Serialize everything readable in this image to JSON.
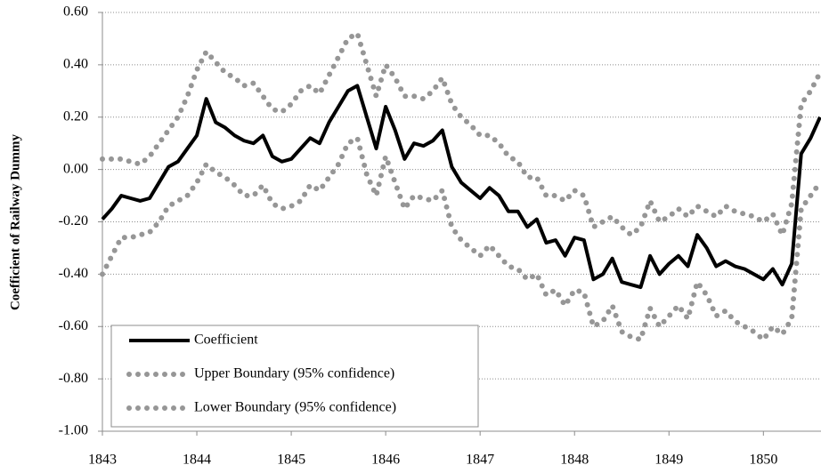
{
  "chart_data": {
    "type": "line",
    "y_label": "Coefficient of Railway Dummy",
    "xlim": [
      1843,
      1850.61
    ],
    "xticks": [
      1843,
      1844,
      1845,
      1846,
      1847,
      1848,
      1849,
      1850
    ],
    "ylim": [
      -1.0,
      0.6
    ],
    "yticks": [
      {
        "value": 0.6,
        "label": "0.60"
      },
      {
        "value": 0.4,
        "label": "0.40"
      },
      {
        "value": 0.2,
        "label": "0.20"
      },
      {
        "value": 0,
        "label": "0.00"
      },
      {
        "value": -0.2,
        "label": "-0.20"
      },
      {
        "value": -0.4,
        "label": "-0.40"
      },
      {
        "value": -0.6,
        "label": "-0.60"
      },
      {
        "value": -0.8,
        "label": "-0.80"
      },
      {
        "value": -1.0,
        "label": "-1.00"
      }
    ],
    "grid": true,
    "legend": "lower left",
    "x": [
      1843.0,
      1843.1,
      1843.2,
      1843.3,
      1843.4,
      1843.5,
      1843.6,
      1843.7,
      1843.8,
      1843.9,
      1844.0,
      1844.1,
      1844.2,
      1844.3,
      1844.4,
      1844.5,
      1844.6,
      1844.7,
      1844.8,
      1844.9,
      1845.0,
      1845.1,
      1845.2,
      1845.3,
      1845.4,
      1845.5,
      1845.6,
      1845.7,
      1845.8,
      1845.9,
      1846.0,
      1846.1,
      1846.2,
      1846.3,
      1846.4,
      1846.5,
      1846.6,
      1846.7,
      1846.8,
      1846.9,
      1847.0,
      1847.1,
      1847.2,
      1847.3,
      1847.4,
      1847.5,
      1847.6,
      1847.7,
      1847.8,
      1847.9,
      1848.0,
      1848.1,
      1848.2,
      1848.3,
      1848.4,
      1848.5,
      1848.6,
      1848.7,
      1848.8,
      1848.9,
      1849.0,
      1849.1,
      1849.2,
      1849.3,
      1849.4,
      1849.5,
      1849.6,
      1849.7,
      1849.8,
      1849.9,
      1850.0,
      1850.1,
      1850.2,
      1850.3,
      1850.4,
      1850.5,
      1850.6
    ],
    "series": [
      {
        "name": "Coefficient",
        "color": "#000000",
        "line_style": "solid",
        "values": [
          -0.19,
          -0.15,
          -0.1,
          -0.11,
          -0.12,
          -0.11,
          -0.05,
          0.01,
          0.03,
          0.08,
          0.13,
          0.27,
          0.18,
          0.16,
          0.13,
          0.11,
          0.1,
          0.13,
          0.05,
          0.03,
          0.04,
          0.08,
          0.12,
          0.1,
          0.18,
          0.24,
          0.3,
          0.32,
          0.2,
          0.08,
          0.24,
          0.15,
          0.04,
          0.1,
          0.09,
          0.11,
          0.15,
          0.01,
          -0.05,
          -0.08,
          -0.11,
          -0.07,
          -0.1,
          -0.16,
          -0.16,
          -0.22,
          -0.19,
          -0.28,
          -0.27,
          -0.33,
          -0.26,
          -0.27,
          -0.42,
          -0.4,
          -0.34,
          -0.43,
          -0.44,
          -0.45,
          -0.33,
          -0.4,
          -0.36,
          -0.33,
          -0.37,
          -0.25,
          -0.3,
          -0.37,
          -0.35,
          -0.37,
          -0.38,
          -0.4,
          -0.42,
          -0.38,
          -0.44,
          -0.36,
          0.06,
          0.12,
          0.2
        ]
      },
      {
        "name": "Upper Boundary (95% confidence)",
        "color": "#969696",
        "line_style": "dotted",
        "values": [
          0.04,
          0.04,
          0.04,
          0.03,
          0.02,
          0.05,
          0.1,
          0.15,
          0.2,
          0.28,
          0.38,
          0.45,
          0.41,
          0.37,
          0.35,
          0.32,
          0.33,
          0.28,
          0.23,
          0.22,
          0.25,
          0.3,
          0.32,
          0.29,
          0.36,
          0.43,
          0.5,
          0.52,
          0.4,
          0.28,
          0.4,
          0.35,
          0.28,
          0.28,
          0.27,
          0.3,
          0.35,
          0.25,
          0.2,
          0.17,
          0.13,
          0.13,
          0.1,
          0.05,
          0.03,
          -0.03,
          -0.03,
          -0.1,
          -0.1,
          -0.12,
          -0.08,
          -0.1,
          -0.22,
          -0.2,
          -0.18,
          -0.22,
          -0.25,
          -0.22,
          -0.12,
          -0.2,
          -0.18,
          -0.15,
          -0.18,
          -0.14,
          -0.16,
          -0.18,
          -0.14,
          -0.16,
          -0.17,
          -0.18,
          -0.2,
          -0.17,
          -0.25,
          -0.13,
          0.25,
          0.3,
          0.37
        ]
      },
      {
        "name": "Lower Boundary (95% confidence)",
        "color": "#969696",
        "line_style": "dotted",
        "values": [
          -0.4,
          -0.33,
          -0.26,
          -0.26,
          -0.25,
          -0.24,
          -0.2,
          -0.14,
          -0.12,
          -0.1,
          -0.05,
          0.02,
          -0.01,
          -0.03,
          -0.06,
          -0.1,
          -0.1,
          -0.06,
          -0.13,
          -0.15,
          -0.14,
          -0.12,
          -0.06,
          -0.08,
          -0.03,
          0.02,
          0.1,
          0.12,
          -0.02,
          -0.1,
          0.05,
          -0.05,
          -0.15,
          -0.1,
          -0.11,
          -0.12,
          -0.08,
          -0.22,
          -0.27,
          -0.3,
          -0.33,
          -0.29,
          -0.33,
          -0.37,
          -0.38,
          -0.42,
          -0.4,
          -0.48,
          -0.46,
          -0.52,
          -0.46,
          -0.47,
          -0.6,
          -0.58,
          -0.52,
          -0.62,
          -0.64,
          -0.65,
          -0.53,
          -0.6,
          -0.56,
          -0.52,
          -0.57,
          -0.43,
          -0.48,
          -0.56,
          -0.54,
          -0.58,
          -0.6,
          -0.62,
          -0.65,
          -0.6,
          -0.63,
          -0.57,
          -0.15,
          -0.1,
          -0.05
        ]
      }
    ]
  }
}
